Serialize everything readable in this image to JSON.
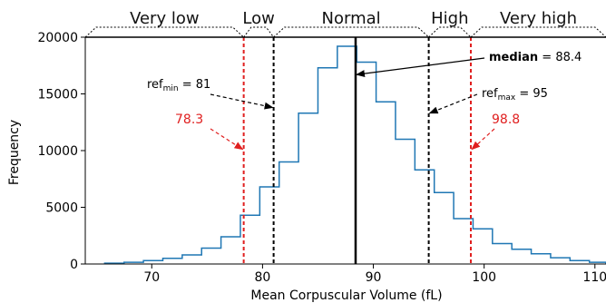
{
  "chart_data": {
    "type": "histogram-step",
    "xlabel": "Mean Corpuscular Volume (fL)",
    "ylabel": "Frequency",
    "xlim": [
      64,
      111
    ],
    "ylim": [
      0,
      20000
    ],
    "xticks": [
      70,
      80,
      90,
      100,
      110
    ],
    "yticks": [
      0,
      5000,
      10000,
      15000,
      20000
    ],
    "bin_width": 1.75,
    "bin_edges": [
      65.75,
      67.5,
      69.25,
      71.0,
      72.75,
      74.5,
      76.25,
      78.0,
      79.75,
      81.5,
      83.25,
      85.0,
      86.75,
      88.5,
      90.25,
      92.0,
      93.75,
      95.5,
      97.25,
      99.0,
      100.75,
      102.5,
      104.25,
      106.0,
      107.75,
      109.5,
      111.0
    ],
    "counts": [
      70,
      150,
      300,
      500,
      800,
      1400,
      2400,
      4300,
      6800,
      9000,
      13300,
      17300,
      19200,
      17800,
      14300,
      11000,
      8300,
      6300,
      4000,
      3100,
      1800,
      1300,
      900,
      550,
      300,
      150
    ],
    "series_color": "#1f77b4",
    "categories": [
      {
        "label": "Very low",
        "from": 64,
        "to": 78.3
      },
      {
        "label": "Low",
        "from": 78.3,
        "to": 81
      },
      {
        "label": "Normal",
        "from": 81,
        "to": 95
      },
      {
        "label": "High",
        "from": 95,
        "to": 98.8
      },
      {
        "label": "Very high",
        "from": 98.8,
        "to": 111
      }
    ],
    "vlines": [
      {
        "x": 78.3,
        "color": "#e02020",
        "style": "dashed"
      },
      {
        "x": 81,
        "color": "#000000",
        "style": "dashed"
      },
      {
        "x": 88.4,
        "color": "#000000",
        "style": "solid"
      },
      {
        "x": 95,
        "color": "#000000",
        "style": "dashed"
      },
      {
        "x": 98.8,
        "color": "#e02020",
        "style": "dashed"
      }
    ],
    "annotations": {
      "ref_min": {
        "prefix": "ref",
        "sub": "min",
        "suffix": " = 81",
        "x": 81,
        "y": 13800
      },
      "ref_max": {
        "prefix": "ref",
        "sub": "max",
        "suffix": " = 95",
        "x": 95,
        "y": 13300
      },
      "median": {
        "bold": "median",
        "suffix": " = 88.4",
        "x": 88.4,
        "y": 16700
      },
      "low_red": {
        "text": "78.3",
        "x": 78.3,
        "y": 10100
      },
      "high_red": {
        "text": "98.8",
        "x": 98.8,
        "y": 10100
      }
    }
  }
}
